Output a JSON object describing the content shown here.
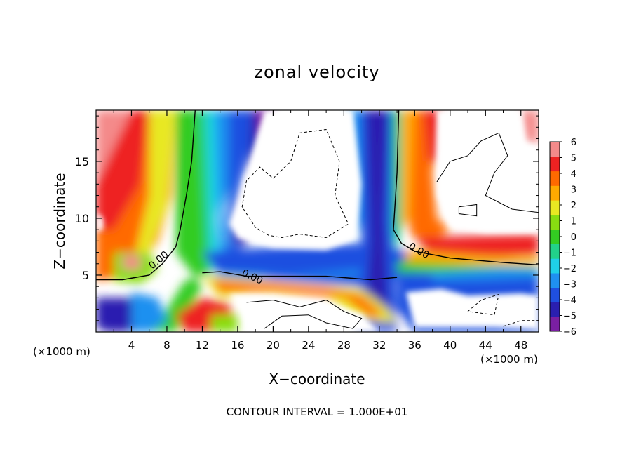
{
  "chart_data": {
    "type": "heatmap",
    "title": "zonal velocity",
    "xlabel": "X−coordinate",
    "ylabel": "Z−coordinate",
    "x_unit_label": "(×1000 m)",
    "x_unit_label_right": "(×1000 m)",
    "footer": "CONTOUR INTERVAL = 1.000E+01",
    "xlim": [
      0,
      50
    ],
    "ylim": [
      0,
      19.5
    ],
    "x_ticks": [
      "4",
      "8",
      "12",
      "16",
      "20",
      "24",
      "28",
      "32",
      "36",
      "40",
      "44",
      "48"
    ],
    "y_ticks": [
      "5",
      "10",
      "15"
    ],
    "contour_label": "0.00",
    "contour_label_positions_data": [
      [
        7.3,
        6.1
      ],
      [
        17.5,
        4.6
      ],
      [
        36.3,
        6.9
      ]
    ],
    "colorbar": {
      "ticks": [
        "6",
        "5",
        "4",
        "3",
        "2",
        "1",
        "0",
        "−1",
        "−2",
        "−3",
        "−4",
        "−5",
        "−6"
      ],
      "levels": [
        -6,
        -5,
        -4,
        -3,
        -2,
        -1,
        0,
        1,
        2,
        3,
        4,
        5,
        6
      ],
      "colors": [
        "#7a1fa2",
        "#2a1fb0",
        "#1f4fe0",
        "#1f90f0",
        "#1fd0e8",
        "#22d28a",
        "#33cc22",
        "#88dd11",
        "#e8e822",
        "#ffaa00",
        "#ff6a00",
        "#ee2222",
        "#f48a8a"
      ]
    },
    "features": [
      {
        "name": "left-red-column",
        "x_range": [
          0,
          9
        ],
        "z_range": [
          4,
          19.5
        ],
        "value": 5.5
      },
      {
        "name": "left-green-band",
        "x_range": [
          8,
          12
        ],
        "z_range": [
          5,
          19.5
        ],
        "value": 0
      },
      {
        "name": "left-blue-band",
        "x_range": [
          10,
          19
        ],
        "z_range": [
          5,
          19.5
        ],
        "value": -4
      },
      {
        "name": "central-positive-region",
        "x_range": [
          19,
          32
        ],
        "z_range": [
          7,
          19.5
        ],
        "value": 7
      },
      {
        "name": "central-vertical-blue-column",
        "x_range": [
          30,
          34
        ],
        "z_range": [
          0,
          19.5
        ],
        "value": -5
      },
      {
        "name": "right-orange-column",
        "x_range": [
          34,
          39
        ],
        "z_range": [
          8,
          19.5
        ],
        "value": 4
      },
      {
        "name": "right-red-band",
        "x_range": [
          36,
          50
        ],
        "z_range": [
          6,
          8.5
        ],
        "value": 5
      },
      {
        "name": "lower-warm-blob",
        "x_range": [
          12,
          36
        ],
        "z_range": [
          0,
          5
        ],
        "value": 4
      },
      {
        "name": "right-lower-blue-region",
        "x_range": [
          36,
          50
        ],
        "z_range": [
          0,
          6
        ],
        "value": -5
      }
    ]
  }
}
